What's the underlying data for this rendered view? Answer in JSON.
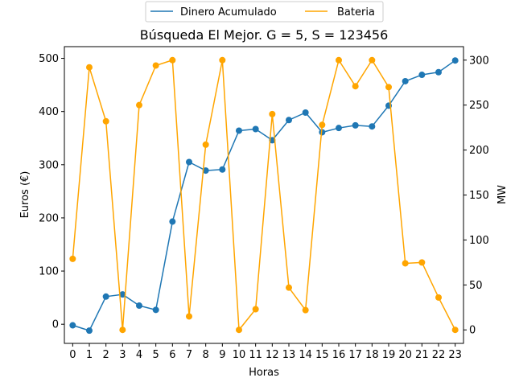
{
  "chart_data": {
    "type": "line",
    "title": "Búsqueda El Mejor. G = 5, S = 123456",
    "xlabel": "Horas",
    "ylabel_left": "Euros (€)",
    "ylabel_right": "MW",
    "x": [
      0,
      1,
      2,
      3,
      4,
      5,
      6,
      7,
      8,
      9,
      10,
      11,
      12,
      13,
      14,
      15,
      16,
      17,
      18,
      19,
      20,
      21,
      22,
      23
    ],
    "xlim": [
      -0.5,
      23.5
    ],
    "ylim_left": [
      -36,
      522
    ],
    "yticks_left": [
      0,
      100,
      200,
      300,
      400,
      500
    ],
    "ylim_right": [
      -15,
      315
    ],
    "yticks_right": [
      0,
      50,
      100,
      150,
      200,
      250,
      300
    ],
    "legend": {
      "placement": "top-center-outside",
      "columns": 2
    },
    "grid": false,
    "series": [
      {
        "name": "Dinero Acumulado",
        "axis": "left",
        "color": "#1f77b4",
        "marker": "circle",
        "values": [
          -2,
          -12,
          52,
          56,
          35,
          27,
          193,
          305,
          289,
          291,
          364,
          367,
          346,
          384,
          398,
          361,
          369,
          374,
          372,
          411,
          457,
          469,
          474,
          496
        ]
      },
      {
        "name": "Bateria",
        "axis": "right",
        "color": "#ffa500",
        "marker": "circle",
        "values": [
          79,
          292,
          232,
          0,
          250,
          294,
          300,
          15,
          206,
          300,
          0,
          23,
          240,
          47,
          22,
          228,
          300,
          271,
          300,
          270,
          74,
          75,
          36,
          0
        ]
      }
    ]
  }
}
